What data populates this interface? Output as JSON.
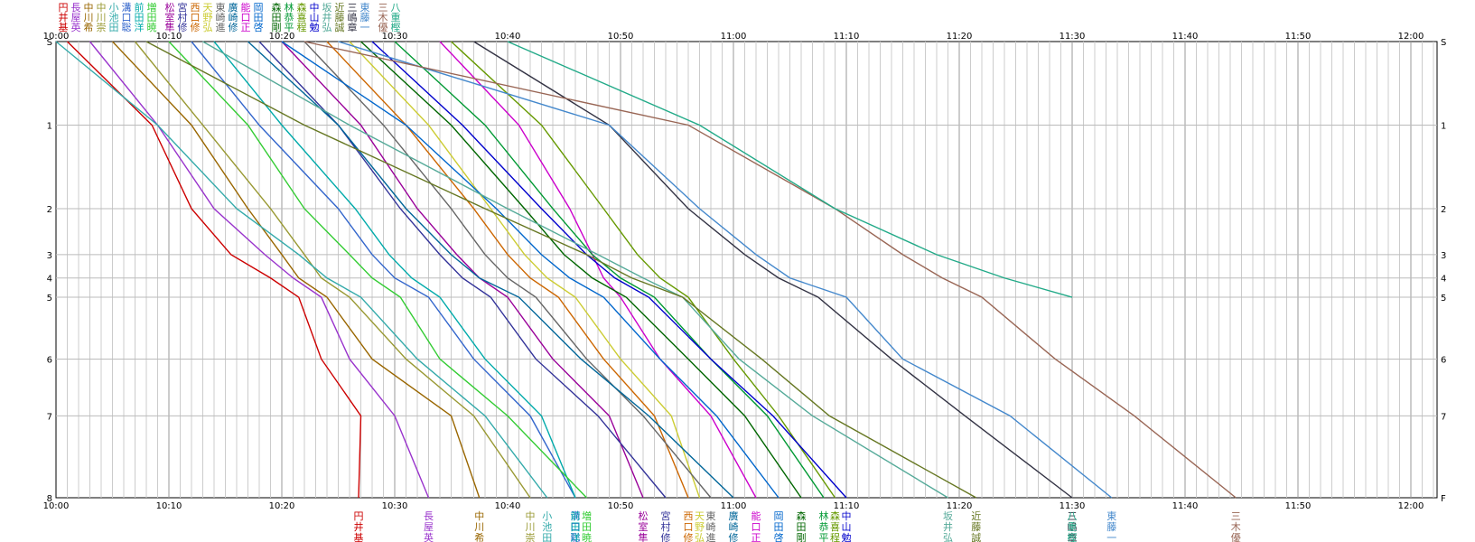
{
  "chart_data": {
    "type": "line",
    "x_axis": {
      "ticks": [
        "10:00",
        "10:10",
        "10:20",
        "10:30",
        "10:40",
        "10:50",
        "11:00",
        "11:10",
        "11:20",
        "11:30",
        "11:40",
        "11:50",
        "12:00"
      ],
      "range_minutes": [
        0,
        125
      ]
    },
    "y_axis": {
      "left_labels": [
        "S",
        "1",
        "2",
        "3",
        "4",
        "5",
        "6",
        "7",
        "8"
      ],
      "right_labels": [
        "S",
        "1",
        "2",
        "3",
        "4",
        "5",
        "6",
        "7",
        "F"
      ],
      "checkpoint_km": [
        0,
        1.0,
        2.0,
        2.55,
        2.83,
        3.06,
        3.8,
        4.48,
        5.46
      ]
    },
    "grid": true,
    "legend": "top-left",
    "series": [
      {
        "name": "円井基",
        "color": "#cc0000",
        "times": [
          1,
          8.5,
          12,
          15.5,
          19,
          21.5,
          23.5,
          27,
          26.8
        ]
      },
      {
        "name": "長屋英",
        "color": "#9933cc",
        "times": [
          3,
          9,
          14,
          18.5,
          21,
          23.5,
          26,
          30,
          33
        ]
      },
      {
        "name": "中川希",
        "color": "#996600",
        "times": [
          5,
          12,
          17,
          20,
          21.5,
          24,
          28,
          35,
          37.5
        ]
      },
      {
        "name": "中川崇",
        "color": "#999933",
        "times": [
          7,
          13,
          19,
          22,
          23.5,
          26,
          31,
          37,
          42
        ]
      },
      {
        "name": "小池田",
        "color": "#33aaaa",
        "times": [
          0,
          9,
          16,
          21.5,
          24,
          27,
          32,
          38,
          43.5
        ]
      },
      {
        "name": "溝口聡",
        "color": "#3366cc",
        "times": [
          12,
          18,
          25,
          28,
          30,
          33,
          37,
          42,
          46
        ]
      },
      {
        "name": "前田洋",
        "color": "#00aaaa",
        "times": [
          14,
          20,
          26.5,
          29.5,
          31.5,
          34,
          38,
          43,
          46
        ]
      },
      {
        "name": "増田暁",
        "color": "#33cc33",
        "times": [
          10,
          17,
          22,
          26,
          28,
          30.5,
          34,
          40,
          47
        ]
      },
      {
        "name": "松室隼",
        "color": "#990099",
        "times": [
          20,
          27,
          32,
          35.5,
          37.5,
          40,
          44,
          49,
          52
        ]
      },
      {
        "name": "宮村修",
        "color": "#333399",
        "times": [
          18,
          25,
          30.5,
          34,
          36,
          38.5,
          42.5,
          48,
          54
        ]
      },
      {
        "name": "西口修",
        "color": "#cc6600",
        "times": [
          24,
          31,
          37,
          40,
          42,
          44.5,
          48.5,
          53,
          56
        ]
      },
      {
        "name": "天野弘",
        "color": "#cccc33",
        "times": [
          26,
          33,
          38.5,
          41.5,
          43.5,
          46,
          50,
          54.5,
          57
        ]
      },
      {
        "name": "東崎進",
        "color": "#666666",
        "times": [
          22,
          29,
          35,
          38,
          40,
          42.5,
          47,
          52,
          58
        ]
      },
      {
        "name": "廣崎修",
        "color": "#006699",
        "times": [
          17,
          25,
          31,
          35,
          37.5,
          41,
          46.5,
          52.5,
          60
        ]
      },
      {
        "name": "能口正",
        "color": "#cc00cc",
        "times": [
          34,
          41,
          45.5,
          47.5,
          48.5,
          50,
          53.5,
          58,
          62
        ]
      },
      {
        "name": "岡田啓",
        "color": "#0066cc",
        "times": [
          20,
          31,
          39,
          43,
          45.5,
          48.5,
          53.5,
          58.5,
          64
        ]
      },
      {
        "name": "森田剛",
        "color": "#006600",
        "times": [
          27,
          35,
          41.5,
          45,
          47.5,
          50.5,
          56,
          61,
          66
        ]
      },
      {
        "name": "林恭平",
        "color": "#009933",
        "times": [
          30,
          38,
          44,
          47.5,
          50,
          53,
          58,
          63,
          68
        ]
      },
      {
        "name": "森喜程",
        "color": "#669900",
        "times": [
          35,
          43,
          48.5,
          51.5,
          53.5,
          56,
          60,
          64,
          69
        ]
      },
      {
        "name": "中山勉",
        "color": "#0000cc",
        "times": [
          28,
          36,
          43,
          47,
          49.5,
          52.5,
          58,
          63.5,
          70
        ]
      },
      {
        "name": "坂井弘",
        "color": "#55aa99",
        "times": [
          13,
          26,
          40,
          48,
          52,
          55.5,
          60.5,
          67,
          79
        ]
      },
      {
        "name": "近藤誠",
        "color": "#667722",
        "times": [
          8,
          22,
          38,
          47,
          51,
          55.5,
          62.5,
          68.5,
          81.5
        ]
      },
      {
        "name": "三嶋章",
        "color": "#333344",
        "times": [
          37,
          49,
          56,
          61,
          64,
          67.5,
          74,
          80.5,
          90
        ]
      },
      {
        "name": "東藤一",
        "color": "#4488cc",
        "times": [
          25,
          49,
          57,
          62,
          65,
          70,
          75,
          84.5,
          93.5
        ]
      },
      {
        "name": "三木優",
        "color": "#996655",
        "times": [
          22,
          56,
          69,
          75,
          78.5,
          82,
          88.5,
          95.5,
          104.5
        ]
      },
      {
        "name": "八重樫",
        "color": "#22aa88",
        "times": [
          40,
          57,
          69,
          78,
          84,
          90
        ]
      }
    ]
  }
}
